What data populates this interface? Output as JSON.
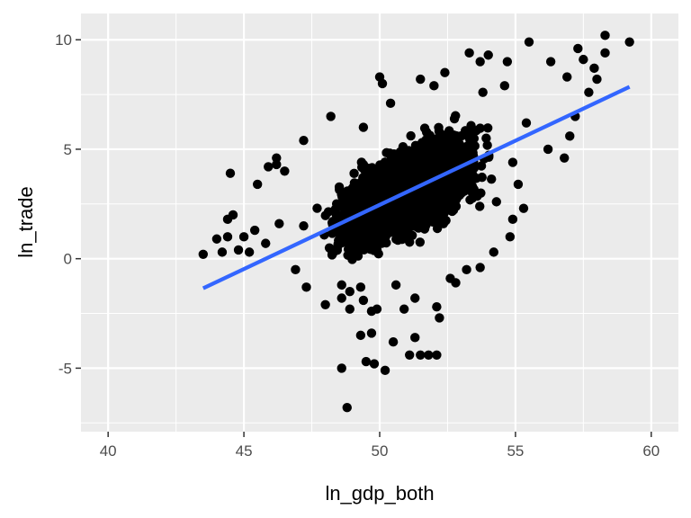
{
  "chart_data": {
    "type": "scatter",
    "title": "",
    "xlabel": "ln_gdp_both",
    "ylabel": "ln_trade",
    "xlim": [
      39,
      61
    ],
    "ylim": [
      -7.9,
      11.2
    ],
    "x_ticks": [
      40,
      45,
      50,
      55,
      60
    ],
    "y_ticks": [
      -5,
      0,
      5,
      10
    ],
    "x_minor": [
      42.5,
      47.5,
      52.5,
      57.5
    ],
    "y_minor": [
      -7.5,
      -2.5,
      2.5,
      7.5
    ],
    "grid": true,
    "legend": "none",
    "colors": {
      "panel": "#ebebeb",
      "grid": "#ffffff",
      "points": "#000000",
      "fit_line": "#3366ff"
    },
    "fit_line": {
      "x": [
        43.5,
        59.2
      ],
      "y": [
        -1.35,
        7.85
      ]
    },
    "outliers": [
      [
        43.5,
        0.2
      ],
      [
        44.0,
        0.9
      ],
      [
        44.4,
        1.0
      ],
      [
        44.5,
        3.9
      ],
      [
        44.4,
        1.8
      ],
      [
        44.6,
        2.0
      ],
      [
        44.2,
        0.3
      ],
      [
        44.8,
        0.4
      ],
      [
        45.0,
        1.0
      ],
      [
        45.2,
        0.3
      ],
      [
        45.4,
        1.3
      ],
      [
        45.8,
        0.7
      ],
      [
        45.9,
        4.2
      ],
      [
        46.2,
        4.3
      ],
      [
        46.5,
        4.0
      ],
      [
        46.3,
        1.6
      ],
      [
        47.2,
        1.5
      ],
      [
        46.9,
        -0.5
      ],
      [
        48.6,
        -5.0
      ],
      [
        48.8,
        -6.8
      ],
      [
        49.8,
        -4.8
      ],
      [
        50.2,
        -5.1
      ],
      [
        49.5,
        -4.7
      ],
      [
        49.3,
        -3.5
      ],
      [
        49.7,
        -3.4
      ],
      [
        50.5,
        -3.8
      ],
      [
        51.3,
        -3.6
      ],
      [
        51.8,
        -4.4
      ],
      [
        52.1,
        -4.4
      ],
      [
        51.5,
        -4.4
      ],
      [
        51.1,
        -4.4
      ],
      [
        52.2,
        -2.7
      ],
      [
        52.1,
        -2.2
      ],
      [
        51.3,
        -1.8
      ],
      [
        50.6,
        -1.2
      ],
      [
        50.9,
        -2.3
      ],
      [
        49.9,
        -2.3
      ],
      [
        49.7,
        -2.4
      ],
      [
        49.4,
        -1.9
      ],
      [
        48.9,
        -2.3
      ],
      [
        48.6,
        -1.8
      ],
      [
        48.0,
        -2.1
      ],
      [
        47.3,
        -1.3
      ],
      [
        48.6,
        -1.2
      ],
      [
        48.9,
        -1.5
      ],
      [
        49.3,
        -1.3
      ],
      [
        52.8,
        -1.1
      ],
      [
        52.6,
        -0.9
      ],
      [
        53.2,
        -0.5
      ],
      [
        53.7,
        -0.4
      ],
      [
        54.2,
        0.3
      ],
      [
        54.8,
        1.0
      ],
      [
        54.9,
        1.8
      ],
      [
        55.3,
        2.3
      ],
      [
        54.3,
        2.6
      ],
      [
        55.1,
        3.4
      ],
      [
        54.9,
        4.4
      ],
      [
        56.2,
        5.0
      ],
      [
        57.0,
        5.6
      ],
      [
        56.8,
        4.6
      ],
      [
        57.2,
        6.5
      ],
      [
        58.0,
        8.2
      ],
      [
        58.3,
        10.2
      ],
      [
        59.2,
        9.9
      ],
      [
        58.3,
        9.4
      ],
      [
        57.5,
        9.1
      ],
      [
        57.3,
        9.6
      ],
      [
        56.3,
        9.0
      ],
      [
        55.5,
        9.9
      ],
      [
        54.7,
        9.0
      ],
      [
        54.0,
        9.3
      ],
      [
        53.7,
        9.0
      ],
      [
        53.3,
        9.4
      ],
      [
        52.4,
        8.5
      ],
      [
        51.5,
        8.2
      ],
      [
        50.0,
        8.3
      ],
      [
        50.1,
        8.0
      ],
      [
        48.2,
        6.5
      ],
      [
        47.2,
        5.4
      ],
      [
        46.2,
        4.6
      ],
      [
        45.5,
        3.4
      ],
      [
        55.4,
        6.2
      ],
      [
        53.8,
        7.6
      ],
      [
        50.4,
        7.1
      ],
      [
        49.4,
        6.0
      ],
      [
        57.7,
        7.6
      ],
      [
        57.9,
        8.7
      ],
      [
        56.9,
        8.3
      ],
      [
        54.6,
        7.9
      ],
      [
        52.0,
        7.9
      ]
    ]
  }
}
